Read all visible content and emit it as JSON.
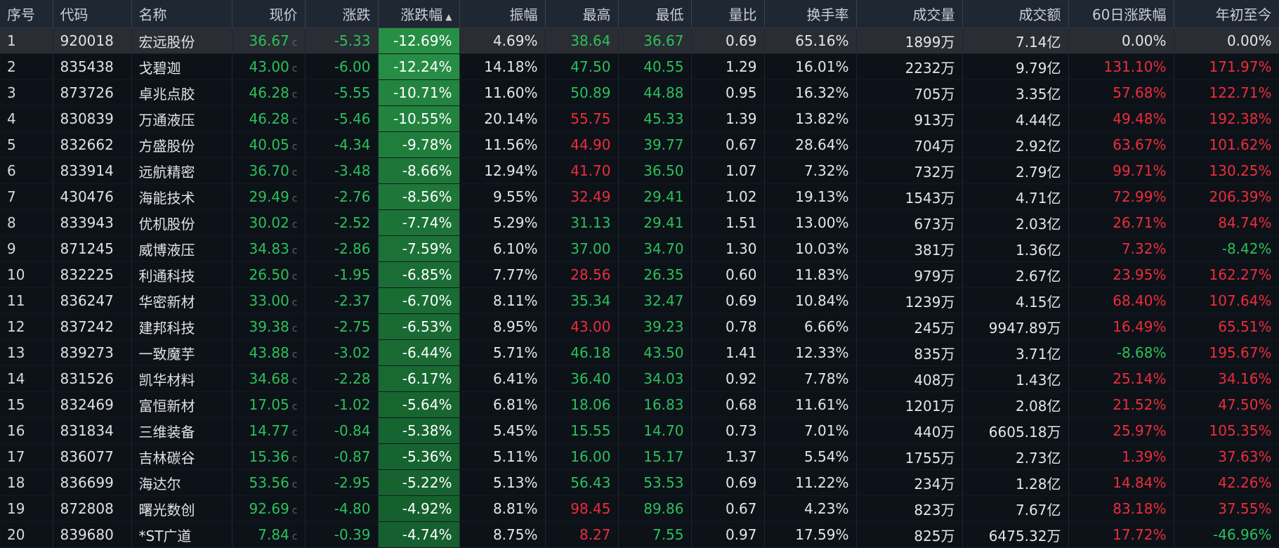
{
  "columns": [
    {
      "key": "seq",
      "label": "序号"
    },
    {
      "key": "code",
      "label": "代码"
    },
    {
      "key": "name",
      "label": "名称"
    },
    {
      "key": "price",
      "label": "现价"
    },
    {
      "key": "change",
      "label": "涨跌"
    },
    {
      "key": "pct",
      "label": "涨跌幅",
      "sorted": "desc"
    },
    {
      "key": "amplitude",
      "label": "振幅"
    },
    {
      "key": "high",
      "label": "最高"
    },
    {
      "key": "low",
      "label": "最低"
    },
    {
      "key": "vol_ratio",
      "label": "量比"
    },
    {
      "key": "turnover",
      "label": "换手率"
    },
    {
      "key": "volume",
      "label": "成交量"
    },
    {
      "key": "amount",
      "label": "成交额"
    },
    {
      "key": "chg60",
      "label": "60日涨跌幅"
    },
    {
      "key": "ytd",
      "label": "年初至今"
    }
  ],
  "price_marker": "c",
  "sort_icon": "caret-up-icon",
  "colors": {
    "up": "#ee2c3c",
    "down": "#2bc15a",
    "flat": "#e6e6e6",
    "header_bg": "#1f2733"
  },
  "selected_row": 0,
  "rows": [
    {
      "seq": "1",
      "code": "920018",
      "name": "宏远股份",
      "price": "36.67",
      "change": "-5.33",
      "pct": "-12.69%",
      "pct_val": -12.69,
      "amplitude": "4.69%",
      "high": "38.64",
      "high_dir": "down",
      "low": "36.67",
      "low_dir": "down",
      "vol_ratio": "0.69",
      "turnover": "65.16%",
      "volume": "1899万",
      "amount": "7.14亿",
      "chg60": "0.00%",
      "chg60_dir": "flat",
      "ytd": "0.00%",
      "ytd_dir": "flat"
    },
    {
      "seq": "2",
      "code": "835438",
      "name": "戈碧迦",
      "price": "43.00",
      "change": "-6.00",
      "pct": "-12.24%",
      "pct_val": -12.24,
      "amplitude": "14.18%",
      "high": "47.50",
      "high_dir": "down",
      "low": "40.55",
      "low_dir": "down",
      "vol_ratio": "1.29",
      "turnover": "16.01%",
      "volume": "2232万",
      "amount": "9.79亿",
      "chg60": "131.10%",
      "chg60_dir": "up",
      "ytd": "171.97%",
      "ytd_dir": "up"
    },
    {
      "seq": "3",
      "code": "873726",
      "name": "卓兆点胶",
      "price": "46.28",
      "change": "-5.55",
      "pct": "-10.71%",
      "pct_val": -10.71,
      "amplitude": "11.60%",
      "high": "50.89",
      "high_dir": "down",
      "low": "44.88",
      "low_dir": "down",
      "vol_ratio": "0.95",
      "turnover": "16.32%",
      "volume": "705万",
      "amount": "3.35亿",
      "chg60": "57.68%",
      "chg60_dir": "up",
      "ytd": "122.71%",
      "ytd_dir": "up"
    },
    {
      "seq": "4",
      "code": "830839",
      "name": "万通液压",
      "price": "46.28",
      "change": "-5.46",
      "pct": "-10.55%",
      "pct_val": -10.55,
      "amplitude": "20.14%",
      "high": "55.75",
      "high_dir": "up",
      "low": "45.33",
      "low_dir": "down",
      "vol_ratio": "1.39",
      "turnover": "13.82%",
      "volume": "913万",
      "amount": "4.44亿",
      "chg60": "49.48%",
      "chg60_dir": "up",
      "ytd": "192.38%",
      "ytd_dir": "up"
    },
    {
      "seq": "5",
      "code": "832662",
      "name": "方盛股份",
      "price": "40.05",
      "change": "-4.34",
      "pct": "-9.78%",
      "pct_val": -9.78,
      "amplitude": "11.56%",
      "high": "44.90",
      "high_dir": "up",
      "low": "39.77",
      "low_dir": "down",
      "vol_ratio": "0.67",
      "turnover": "28.64%",
      "volume": "704万",
      "amount": "2.92亿",
      "chg60": "63.67%",
      "chg60_dir": "up",
      "ytd": "101.62%",
      "ytd_dir": "up"
    },
    {
      "seq": "6",
      "code": "833914",
      "name": "远航精密",
      "price": "36.70",
      "change": "-3.48",
      "pct": "-8.66%",
      "pct_val": -8.66,
      "amplitude": "12.94%",
      "high": "41.70",
      "high_dir": "up",
      "low": "36.50",
      "low_dir": "down",
      "vol_ratio": "1.07",
      "turnover": "7.32%",
      "volume": "732万",
      "amount": "2.79亿",
      "chg60": "99.71%",
      "chg60_dir": "up",
      "ytd": "130.25%",
      "ytd_dir": "up"
    },
    {
      "seq": "7",
      "code": "430476",
      "name": "海能技术",
      "price": "29.49",
      "change": "-2.76",
      "pct": "-8.56%",
      "pct_val": -8.56,
      "amplitude": "9.55%",
      "high": "32.49",
      "high_dir": "up",
      "low": "29.41",
      "low_dir": "down",
      "vol_ratio": "1.02",
      "turnover": "19.13%",
      "volume": "1543万",
      "amount": "4.71亿",
      "chg60": "72.99%",
      "chg60_dir": "up",
      "ytd": "206.39%",
      "ytd_dir": "up"
    },
    {
      "seq": "8",
      "code": "833943",
      "name": "优机股份",
      "price": "30.02",
      "change": "-2.52",
      "pct": "-7.74%",
      "pct_val": -7.74,
      "amplitude": "5.29%",
      "high": "31.13",
      "high_dir": "down",
      "low": "29.41",
      "low_dir": "down",
      "vol_ratio": "1.51",
      "turnover": "13.00%",
      "volume": "673万",
      "amount": "2.03亿",
      "chg60": "26.71%",
      "chg60_dir": "up",
      "ytd": "84.74%",
      "ytd_dir": "up"
    },
    {
      "seq": "9",
      "code": "871245",
      "name": "威博液压",
      "price": "34.83",
      "change": "-2.86",
      "pct": "-7.59%",
      "pct_val": -7.59,
      "amplitude": "6.10%",
      "high": "37.00",
      "high_dir": "down",
      "low": "34.70",
      "low_dir": "down",
      "vol_ratio": "1.30",
      "turnover": "10.03%",
      "volume": "381万",
      "amount": "1.36亿",
      "chg60": "7.32%",
      "chg60_dir": "up",
      "ytd": "-8.42%",
      "ytd_dir": "down"
    },
    {
      "seq": "10",
      "code": "832225",
      "name": "利通科技",
      "price": "26.50",
      "change": "-1.95",
      "pct": "-6.85%",
      "pct_val": -6.85,
      "amplitude": "7.77%",
      "high": "28.56",
      "high_dir": "up",
      "low": "26.35",
      "low_dir": "down",
      "vol_ratio": "0.60",
      "turnover": "11.83%",
      "volume": "979万",
      "amount": "2.67亿",
      "chg60": "23.95%",
      "chg60_dir": "up",
      "ytd": "162.27%",
      "ytd_dir": "up"
    },
    {
      "seq": "11",
      "code": "836247",
      "name": "华密新材",
      "price": "33.00",
      "change": "-2.37",
      "pct": "-6.70%",
      "pct_val": -6.7,
      "amplitude": "8.11%",
      "high": "35.34",
      "high_dir": "down",
      "low": "32.47",
      "low_dir": "down",
      "vol_ratio": "0.69",
      "turnover": "10.84%",
      "volume": "1239万",
      "amount": "4.15亿",
      "chg60": "68.40%",
      "chg60_dir": "up",
      "ytd": "107.64%",
      "ytd_dir": "up"
    },
    {
      "seq": "12",
      "code": "837242",
      "name": "建邦科技",
      "price": "39.38",
      "change": "-2.75",
      "pct": "-6.53%",
      "pct_val": -6.53,
      "amplitude": "8.95%",
      "high": "43.00",
      "high_dir": "up",
      "low": "39.23",
      "low_dir": "down",
      "vol_ratio": "0.78",
      "turnover": "6.66%",
      "volume": "245万",
      "amount": "9947.89万",
      "chg60": "16.49%",
      "chg60_dir": "up",
      "ytd": "65.51%",
      "ytd_dir": "up"
    },
    {
      "seq": "13",
      "code": "839273",
      "name": "一致魔芋",
      "price": "43.88",
      "change": "-3.02",
      "pct": "-6.44%",
      "pct_val": -6.44,
      "amplitude": "5.71%",
      "high": "46.18",
      "high_dir": "down",
      "low": "43.50",
      "low_dir": "down",
      "vol_ratio": "1.41",
      "turnover": "12.33%",
      "volume": "835万",
      "amount": "3.71亿",
      "chg60": "-8.68%",
      "chg60_dir": "down",
      "ytd": "195.67%",
      "ytd_dir": "up"
    },
    {
      "seq": "14",
      "code": "831526",
      "name": "凯华材料",
      "price": "34.68",
      "change": "-2.28",
      "pct": "-6.17%",
      "pct_val": -6.17,
      "amplitude": "6.41%",
      "high": "36.40",
      "high_dir": "down",
      "low": "34.03",
      "low_dir": "down",
      "vol_ratio": "0.92",
      "turnover": "7.78%",
      "volume": "408万",
      "amount": "1.43亿",
      "chg60": "25.14%",
      "chg60_dir": "up",
      "ytd": "34.16%",
      "ytd_dir": "up"
    },
    {
      "seq": "15",
      "code": "832469",
      "name": "富恒新材",
      "price": "17.05",
      "change": "-1.02",
      "pct": "-5.64%",
      "pct_val": -5.64,
      "amplitude": "6.81%",
      "high": "18.06",
      "high_dir": "down",
      "low": "16.83",
      "low_dir": "down",
      "vol_ratio": "0.68",
      "turnover": "11.61%",
      "volume": "1201万",
      "amount": "2.08亿",
      "chg60": "21.52%",
      "chg60_dir": "up",
      "ytd": "47.50%",
      "ytd_dir": "up"
    },
    {
      "seq": "16",
      "code": "831834",
      "name": "三维装备",
      "price": "14.77",
      "change": "-0.84",
      "pct": "-5.38%",
      "pct_val": -5.38,
      "amplitude": "5.45%",
      "high": "15.55",
      "high_dir": "down",
      "low": "14.70",
      "low_dir": "down",
      "vol_ratio": "0.73",
      "turnover": "7.01%",
      "volume": "440万",
      "amount": "6605.18万",
      "chg60": "25.97%",
      "chg60_dir": "up",
      "ytd": "105.35%",
      "ytd_dir": "up"
    },
    {
      "seq": "17",
      "code": "836077",
      "name": "吉林碳谷",
      "price": "15.36",
      "change": "-0.87",
      "pct": "-5.36%",
      "pct_val": -5.36,
      "amplitude": "5.11%",
      "high": "16.00",
      "high_dir": "down",
      "low": "15.17",
      "low_dir": "down",
      "vol_ratio": "1.37",
      "turnover": "5.54%",
      "volume": "1755万",
      "amount": "2.73亿",
      "chg60": "1.39%",
      "chg60_dir": "up",
      "ytd": "37.63%",
      "ytd_dir": "up"
    },
    {
      "seq": "18",
      "code": "836699",
      "name": "海达尔",
      "price": "53.56",
      "change": "-2.95",
      "pct": "-5.22%",
      "pct_val": -5.22,
      "amplitude": "5.13%",
      "high": "56.43",
      "high_dir": "down",
      "low": "53.53",
      "low_dir": "down",
      "vol_ratio": "0.69",
      "turnover": "11.22%",
      "volume": "234万",
      "amount": "1.28亿",
      "chg60": "14.84%",
      "chg60_dir": "up",
      "ytd": "42.26%",
      "ytd_dir": "up"
    },
    {
      "seq": "19",
      "code": "872808",
      "name": "曙光数创",
      "price": "92.69",
      "change": "-4.80",
      "pct": "-4.92%",
      "pct_val": -4.92,
      "amplitude": "8.81%",
      "high": "98.45",
      "high_dir": "up",
      "low": "89.86",
      "low_dir": "down",
      "vol_ratio": "0.67",
      "turnover": "4.23%",
      "volume": "823万",
      "amount": "7.67亿",
      "chg60": "83.18%",
      "chg60_dir": "up",
      "ytd": "37.55%",
      "ytd_dir": "up"
    },
    {
      "seq": "20",
      "code": "839680",
      "name": "*ST广道",
      "price": "7.84",
      "change": "-0.39",
      "pct": "-4.74%",
      "pct_val": -4.74,
      "amplitude": "8.75%",
      "high": "8.27",
      "high_dir": "up",
      "low": "7.55",
      "low_dir": "down",
      "vol_ratio": "0.97",
      "turnover": "17.59%",
      "volume": "825万",
      "amount": "6475.32万",
      "chg60": "17.72%",
      "chg60_dir": "up",
      "ytd": "-46.96%",
      "ytd_dir": "down"
    }
  ]
}
